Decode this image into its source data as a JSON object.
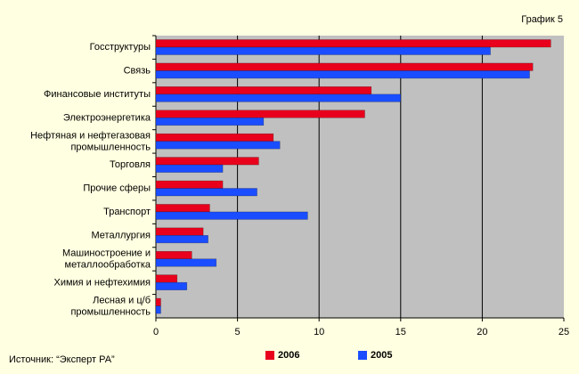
{
  "chart_data": {
    "type": "hbar",
    "subtitle": "График 5",
    "source": "Источник: “Эксперт РА”",
    "categories": [
      "Госструктуры",
      "Связь",
      "Финансовые институты",
      "Электроэнергетика",
      "Нефтяная и нефтегазовая\nпромышленность",
      "Торговля",
      "Прочие сферы",
      "Транспорт",
      "Металлургия",
      "Машиностроение и\nметаллообработка",
      "Химия и нефтехимия",
      "Лесная и ц/б\nпромышленность"
    ],
    "series": [
      {
        "name": "2006",
        "color": "#e8001c",
        "values": [
          24.2,
          23.1,
          13.2,
          12.8,
          7.2,
          6.3,
          4.1,
          3.3,
          2.9,
          2.2,
          1.3,
          0.3
        ]
      },
      {
        "name": "2005",
        "color": "#1a4dff",
        "values": [
          20.5,
          22.9,
          15.0,
          6.6,
          7.6,
          4.1,
          6.2,
          9.3,
          3.2,
          3.7,
          1.9,
          0.3
        ]
      }
    ],
    "xlim": [
      0,
      25
    ],
    "xticks": [
      0,
      5,
      10,
      15,
      20,
      25
    ],
    "grid": true,
    "legend": "bottom"
  }
}
